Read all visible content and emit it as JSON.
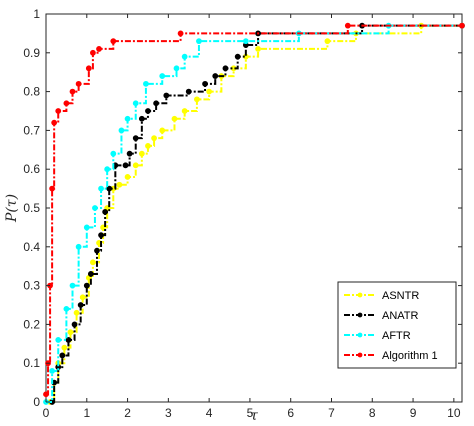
{
  "chart_data": {
    "type": "line",
    "title": "",
    "xlabel": "τ",
    "ylabel": "P(τ)",
    "xlim": [
      0,
      10.2
    ],
    "ylim": [
      0,
      1
    ],
    "x_ticks": [
      0,
      1,
      2,
      3,
      4,
      5,
      6,
      7,
      8,
      9,
      10
    ],
    "y_ticks": [
      0,
      0.1,
      0.2,
      0.3,
      0.4,
      0.5,
      0.6,
      0.7,
      0.8,
      0.9,
      1
    ],
    "grid": false,
    "legend_position": "bottom-right",
    "series": [
      {
        "name": "ASNTR",
        "color": "#FFFF00",
        "points": [
          [
            0.1,
            0
          ],
          [
            0.2,
            0.05
          ],
          [
            0.3,
            0.1
          ],
          [
            0.45,
            0.14
          ],
          [
            0.6,
            0.18
          ],
          [
            0.75,
            0.23
          ],
          [
            0.9,
            0.27
          ],
          [
            1.05,
            0.32
          ],
          [
            1.15,
            0.36
          ],
          [
            1.3,
            0.41
          ],
          [
            1.4,
            0.45
          ],
          [
            1.5,
            0.5
          ],
          [
            1.65,
            0.55
          ],
          [
            1.8,
            0.56
          ],
          [
            2.0,
            0.58
          ],
          [
            2.2,
            0.61
          ],
          [
            2.35,
            0.64
          ],
          [
            2.5,
            0.66
          ],
          [
            2.65,
            0.68
          ],
          [
            2.85,
            0.7
          ],
          [
            3.15,
            0.73
          ],
          [
            3.4,
            0.75
          ],
          [
            3.7,
            0.78
          ],
          [
            4.0,
            0.8
          ],
          [
            4.3,
            0.84
          ],
          [
            4.6,
            0.86
          ],
          [
            4.9,
            0.89
          ],
          [
            5.2,
            0.91
          ],
          [
            6.9,
            0.93
          ],
          [
            7.6,
            0.95
          ],
          [
            9.2,
            0.97
          ],
          [
            10.2,
            0.97
          ]
        ]
      },
      {
        "name": "ANATR",
        "color": "#000000",
        "points": [
          [
            0.15,
            0
          ],
          [
            0.2,
            0.05
          ],
          [
            0.3,
            0.09
          ],
          [
            0.4,
            0.12
          ],
          [
            0.55,
            0.16
          ],
          [
            0.7,
            0.2
          ],
          [
            0.85,
            0.25
          ],
          [
            1.0,
            0.3
          ],
          [
            1.1,
            0.33
          ],
          [
            1.25,
            0.39
          ],
          [
            1.35,
            0.43
          ],
          [
            1.45,
            0.49
          ],
          [
            1.55,
            0.55
          ],
          [
            1.7,
            0.61
          ],
          [
            1.95,
            0.61
          ],
          [
            2.05,
            0.64
          ],
          [
            2.2,
            0.68
          ],
          [
            2.35,
            0.73
          ],
          [
            2.5,
            0.75
          ],
          [
            2.7,
            0.77
          ],
          [
            2.95,
            0.79
          ],
          [
            3.5,
            0.8
          ],
          [
            3.9,
            0.82
          ],
          [
            4.15,
            0.84
          ],
          [
            4.4,
            0.86
          ],
          [
            4.7,
            0.89
          ],
          [
            4.9,
            0.92
          ],
          [
            5.2,
            0.95
          ],
          [
            7.75,
            0.97
          ],
          [
            10.2,
            0.97
          ]
        ]
      },
      {
        "name": "AFTR",
        "color": "#00FFFF",
        "points": [
          [
            0,
            0
          ],
          [
            0.15,
            0.08
          ],
          [
            0.3,
            0.16
          ],
          [
            0.5,
            0.24
          ],
          [
            0.65,
            0.3
          ],
          [
            0.8,
            0.4
          ],
          [
            1.0,
            0.45
          ],
          [
            1.2,
            0.5
          ],
          [
            1.35,
            0.55
          ],
          [
            1.5,
            0.6
          ],
          [
            1.65,
            0.64
          ],
          [
            1.85,
            0.7
          ],
          [
            2.0,
            0.73
          ],
          [
            2.2,
            0.77
          ],
          [
            2.45,
            0.82
          ],
          [
            2.85,
            0.84
          ],
          [
            3.2,
            0.86
          ],
          [
            3.4,
            0.89
          ],
          [
            3.75,
            0.93
          ],
          [
            4.9,
            0.93
          ],
          [
            6.2,
            0.95
          ],
          [
            8.4,
            0.97
          ],
          [
            10.2,
            0.97
          ]
        ]
      },
      {
        "name": "Algorithm 1",
        "color": "#FF0000",
        "points": [
          [
            0,
            0.02
          ],
          [
            0.05,
            0.1
          ],
          [
            0.1,
            0.3
          ],
          [
            0.15,
            0.55
          ],
          [
            0.2,
            0.72
          ],
          [
            0.3,
            0.75
          ],
          [
            0.5,
            0.77
          ],
          [
            0.65,
            0.8
          ],
          [
            0.8,
            0.82
          ],
          [
            1.05,
            0.86
          ],
          [
            1.15,
            0.9
          ],
          [
            1.3,
            0.91
          ],
          [
            1.65,
            0.93
          ],
          [
            3.3,
            0.95
          ],
          [
            7.4,
            0.97
          ],
          [
            10.2,
            0.97
          ]
        ]
      }
    ]
  }
}
